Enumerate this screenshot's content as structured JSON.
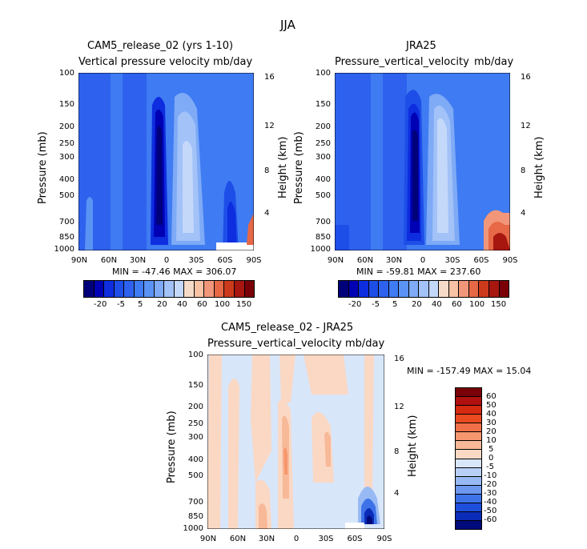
{
  "figure": {
    "title": "JJA"
  },
  "chart_data": [
    {
      "type": "heatmap",
      "title": "CAM5_release_02 (yrs 1-10)",
      "subtitle_left": "Vertical pressure velocity",
      "subtitle_right": "mb/day",
      "xlabel": "",
      "ylabel": "Pressure (mb)",
      "ylabel_right": "Height (km)",
      "x_ticks": [
        "90N",
        "60N",
        "30N",
        "0",
        "30S",
        "60S",
        "90S"
      ],
      "y_ticks": [
        "100",
        "150",
        "200",
        "250",
        "300",
        "400",
        "500",
        "700",
        "850",
        "1000"
      ],
      "y_ticks_right": [
        "16",
        "12",
        "8",
        "4"
      ],
      "stats": "MIN = -47.46   MAX = 306.07",
      "colorbar_labels": [
        "-20",
        "-5",
        "5",
        "20",
        "40",
        "60",
        "100",
        "150"
      ]
    },
    {
      "type": "heatmap",
      "title": "JRA25",
      "subtitle_left": "Pressure_vertical_velocity",
      "subtitle_right": "mb/day",
      "xlabel": "",
      "ylabel": "Pressure (mb)",
      "ylabel_right": "Height (km)",
      "x_ticks": [
        "90N",
        "60N",
        "30N",
        "0",
        "30S",
        "60S",
        "90S"
      ],
      "y_ticks": [
        "100",
        "150",
        "200",
        "250",
        "300",
        "400",
        "500",
        "700",
        "850",
        "1000"
      ],
      "y_ticks_right": [
        "16",
        "12",
        "8",
        "4"
      ],
      "stats": "MIN = -59.81   MAX = 237.60",
      "colorbar_labels": [
        "-20",
        "-5",
        "5",
        "20",
        "40",
        "60",
        "100",
        "150"
      ]
    },
    {
      "type": "heatmap",
      "title": "CAM5_release_02 - JRA25",
      "subtitle_left": "Pressure_vertical_velocity",
      "subtitle_right": "mb/day",
      "xlabel": "",
      "ylabel": "Pressure (mb)",
      "ylabel_right": "Height (km)",
      "x_ticks": [
        "90N",
        "60N",
        "30N",
        "0",
        "30S",
        "60S",
        "90S"
      ],
      "y_ticks": [
        "100",
        "150",
        "200",
        "250",
        "300",
        "400",
        "500",
        "700",
        "850",
        "1000"
      ],
      "y_ticks_right": [
        "16",
        "12",
        "8",
        "4"
      ],
      "stats": "MIN = -157.49   MAX =  15.04",
      "colorbar_labels": [
        "60",
        "50",
        "40",
        "30",
        "20",
        "10",
        "5",
        "0",
        "-5",
        "-10",
        "-20",
        "-30",
        "-40",
        "-50",
        "-60"
      ]
    }
  ],
  "colors": {
    "abs_scale": [
      "#00007a",
      "#0000b4",
      "#0d2ddf",
      "#1e4ee8",
      "#2e62ee",
      "#3f7bf2",
      "#5b93f4",
      "#7eaaf6",
      "#a2c2f8",
      "#c4d8fa",
      "#f6dcc8",
      "#f8c2a4",
      "#f2967a",
      "#e66846",
      "#cc3a1c",
      "#a81610",
      "#7a0008"
    ],
    "diff_scale": [
      "#7a0008",
      "#b01010",
      "#d62a10",
      "#ea4a20",
      "#f27048",
      "#f6976e",
      "#f8b998",
      "#fad8c4",
      "#d8e6fa",
      "#b8d0f8",
      "#98baf4",
      "#6c98f0",
      "#3e72e8",
      "#1e4edc",
      "#0a2cb8",
      "#000a7a"
    ]
  }
}
